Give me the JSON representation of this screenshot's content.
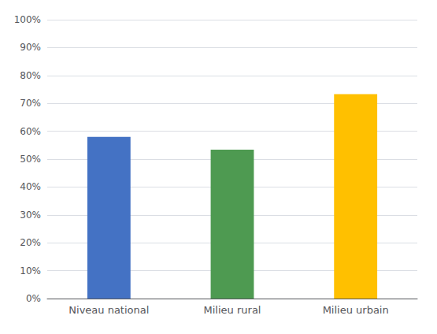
{
  "chart_data": {
    "type": "bar",
    "categories": [
      "Niveau national",
      "Milieu rural",
      "Milieu urbain"
    ],
    "values": [
      0.58,
      0.534,
      0.733
    ],
    "colors": [
      "#4472C4",
      "#4E9A51",
      "#FFC000"
    ],
    "ylim": [
      0,
      1.0
    ],
    "yticks": [
      {
        "value": 0.0,
        "label": "0%"
      },
      {
        "value": 0.1,
        "label": "10%"
      },
      {
        "value": 0.2,
        "label": "20%"
      },
      {
        "value": 0.3,
        "label": "30%"
      },
      {
        "value": 0.4,
        "label": "40%"
      },
      {
        "value": 0.5,
        "label": "50%"
      },
      {
        "value": 0.6,
        "label": "60%"
      },
      {
        "value": 0.7,
        "label": "70%"
      },
      {
        "value": 0.8,
        "label": "80%"
      },
      {
        "value": 0.9,
        "label": "90%"
      },
      {
        "value": 1.0,
        "label": "100%"
      }
    ],
    "grid": true
  }
}
